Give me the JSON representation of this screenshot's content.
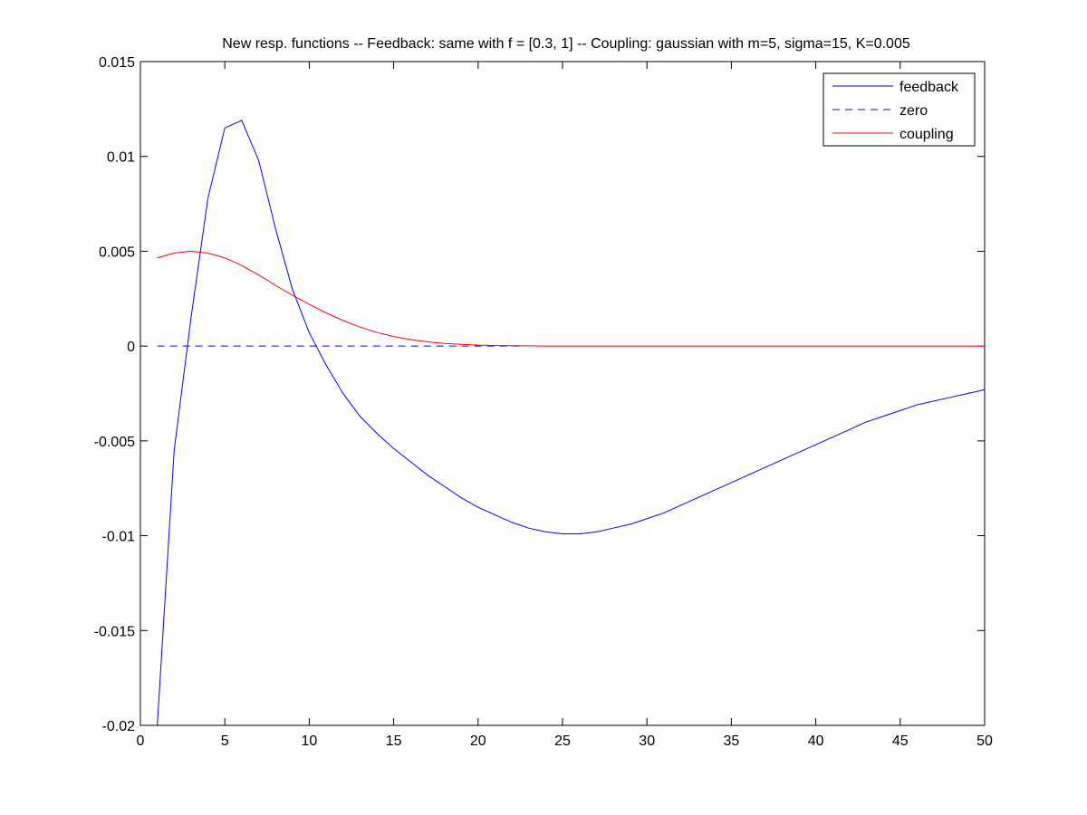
{
  "chart_data": {
    "type": "line",
    "title": "New resp. functions -- Feedback: same with f = [0.3, 1] -- Coupling: gaussian with m=5, sigma=15, K=0.005",
    "xlim": [
      0,
      50
    ],
    "ylim": [
      -0.02,
      0.015
    ],
    "xticks": [
      0,
      5,
      10,
      15,
      20,
      25,
      30,
      35,
      40,
      45,
      50
    ],
    "xtick_labels": [
      "0",
      "5",
      "10",
      "15",
      "20",
      "25",
      "30",
      "35",
      "40",
      "45",
      "50"
    ],
    "yticks": [
      0.015,
      0.01,
      0.005,
      0,
      -0.005,
      -0.01,
      -0.015,
      -0.02
    ],
    "ytick_labels": [
      "0.015",
      "0.01",
      "0.005",
      "0",
      "-0.005",
      "-0.01",
      "-0.015",
      "-0.02"
    ],
    "grid": false,
    "legend_position": "top-right",
    "series": [
      {
        "name": "feedback",
        "color": "#0000ff",
        "dash": "solid",
        "x": [
          1,
          2,
          3,
          4,
          5,
          6,
          7,
          8,
          9,
          10,
          11,
          12,
          13,
          14,
          15,
          16,
          17,
          18,
          19,
          20,
          21,
          22,
          23,
          24,
          25,
          26,
          27,
          28,
          29,
          30,
          31,
          32,
          33,
          34,
          35,
          36,
          37,
          38,
          39,
          40,
          41,
          42,
          43,
          44,
          45,
          46,
          47,
          48,
          49,
          50
        ],
        "y": [
          -0.02,
          -0.0055,
          0.0015,
          0.0078,
          0.0115,
          0.0119,
          0.0098,
          0.0062,
          0.003,
          0.0007,
          -0.001,
          -0.0025,
          -0.0037,
          -0.0046,
          -0.0054,
          -0.0061,
          -0.0068,
          -0.0074,
          -0.008,
          -0.0085,
          -0.0089,
          -0.0093,
          -0.0096,
          -0.0098,
          -0.0099,
          -0.0099,
          -0.0098,
          -0.0096,
          -0.0094,
          -0.0091,
          -0.0088,
          -0.0084,
          -0.008,
          -0.0076,
          -0.0072,
          -0.0068,
          -0.0064,
          -0.006,
          -0.0056,
          -0.0052,
          -0.0048,
          -0.0044,
          -0.004,
          -0.0037,
          -0.0034,
          -0.0031,
          -0.0029,
          -0.0027,
          -0.0025,
          -0.0023
        ]
      },
      {
        "name": "zero",
        "color": "#0000ff",
        "dash": "dashed",
        "x": [
          1,
          22.5
        ],
        "y": [
          0,
          0
        ]
      },
      {
        "name": "coupling",
        "color": "#ff0000",
        "dash": "solid",
        "x": [
          1,
          2,
          3,
          4,
          5,
          6,
          7,
          8,
          9,
          10,
          11,
          12,
          13,
          14,
          15,
          16,
          17,
          18,
          19,
          20,
          21,
          22,
          23,
          24,
          25,
          26,
          27,
          28,
          29,
          30,
          31,
          32,
          33,
          34,
          35,
          36,
          37,
          38,
          39,
          40,
          41,
          42,
          43,
          44,
          45,
          46,
          47,
          48,
          49,
          50
        ],
        "y": [
          0.00465,
          0.0049,
          0.005,
          0.0049,
          0.00465,
          0.00425,
          0.00375,
          0.0032,
          0.00268,
          0.0022,
          0.00175,
          0.00135,
          0.001,
          0.00072,
          0.0005,
          0.00034,
          0.00022,
          0.00014,
          9e-05,
          5e-05,
          3e-05,
          2e-05,
          1e-05,
          0,
          0,
          0,
          0,
          0,
          0,
          0,
          0,
          0,
          0,
          0,
          0,
          0,
          0,
          0,
          0,
          0,
          0,
          0,
          0,
          0,
          0,
          0,
          0,
          0,
          0,
          0
        ]
      }
    ]
  }
}
